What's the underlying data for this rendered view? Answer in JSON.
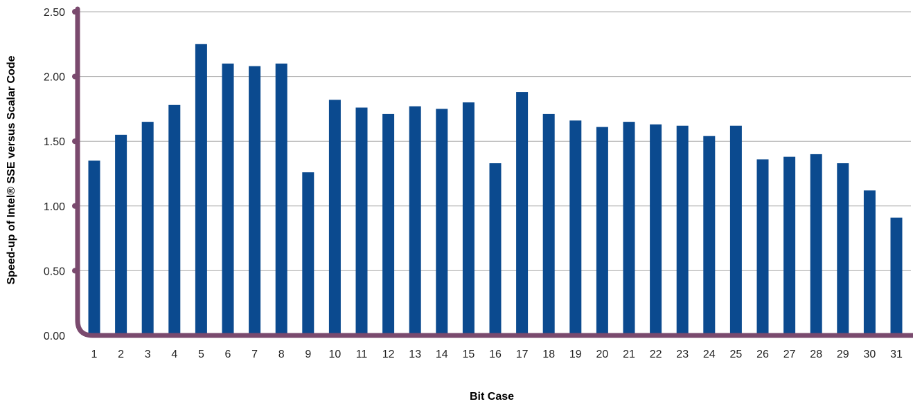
{
  "chart_data": {
    "type": "bar",
    "title": "",
    "xlabel": "Bit Case",
    "ylabel": "Speed-up of Intel® SSE versus Scalar Code",
    "ylim": [
      0,
      2.5
    ],
    "yticks": [
      "0.00",
      "0.50",
      "1.00",
      "1.50",
      "2.00",
      "2.50"
    ],
    "grid": true,
    "legend": "none",
    "categories": [
      "1",
      "2",
      "3",
      "4",
      "5",
      "6",
      "7",
      "8",
      "9",
      "10",
      "11",
      "12",
      "13",
      "14",
      "15",
      "16",
      "17",
      "18",
      "19",
      "20",
      "21",
      "22",
      "23",
      "24",
      "25",
      "26",
      "27",
      "28",
      "29",
      "30",
      "31"
    ],
    "values": [
      1.35,
      1.55,
      1.65,
      1.78,
      2.25,
      2.1,
      2.08,
      2.1,
      1.26,
      1.82,
      1.76,
      1.71,
      1.77,
      1.75,
      1.8,
      1.33,
      1.88,
      1.71,
      1.66,
      1.61,
      1.65,
      1.63,
      1.62,
      1.54,
      1.62,
      1.36,
      1.38,
      1.4,
      1.33,
      1.12,
      0.91
    ],
    "colors": {
      "bar": "#0b4a8f",
      "axis": "#7a4a6e",
      "grid": "#a8a8a8",
      "text": "#222222"
    }
  }
}
